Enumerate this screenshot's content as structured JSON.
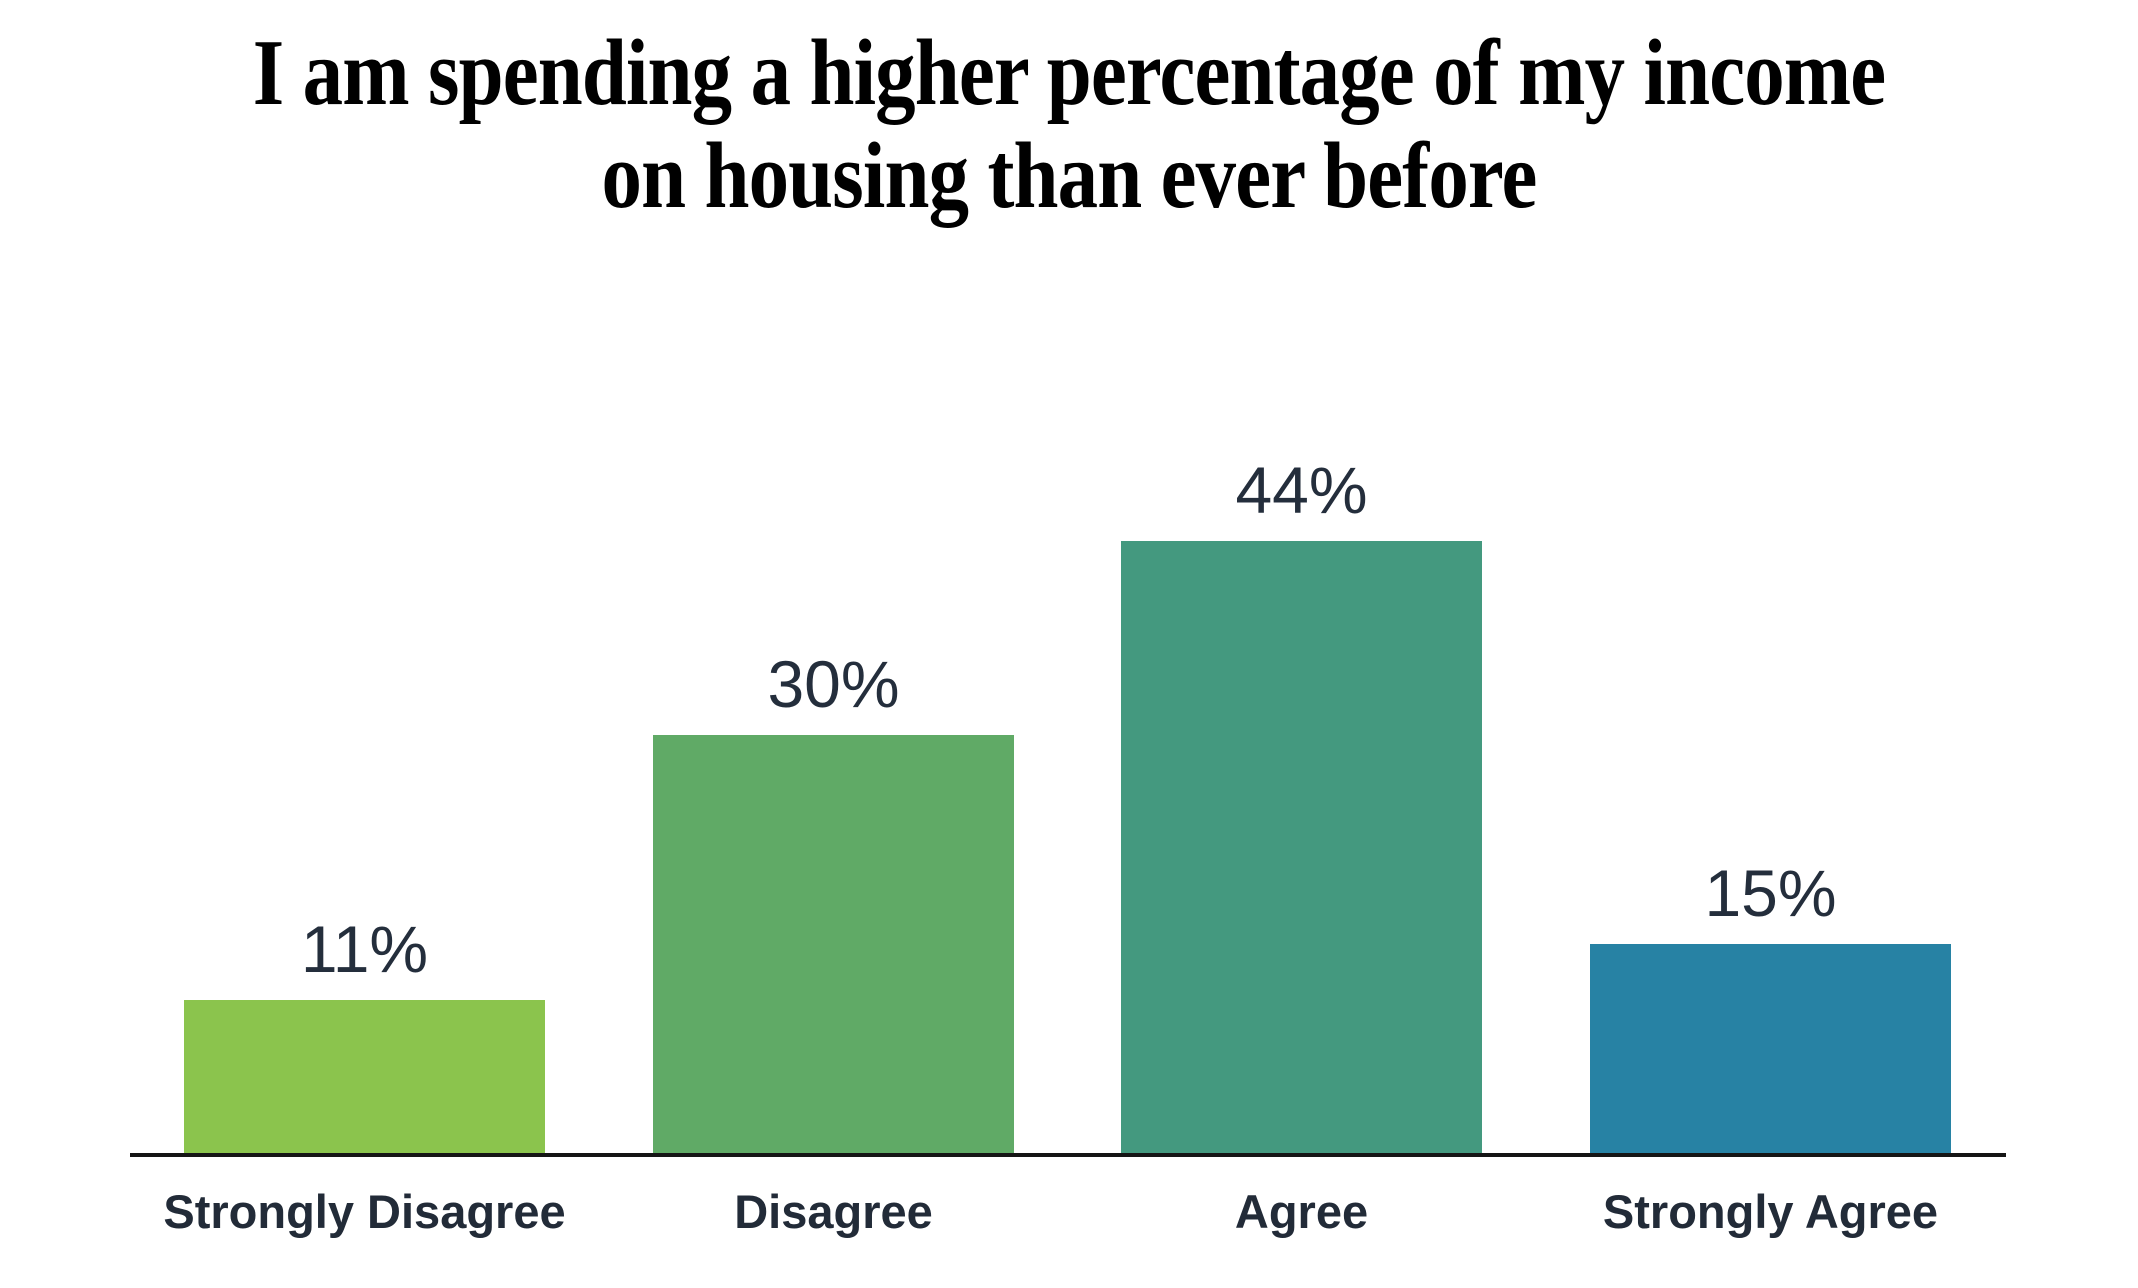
{
  "page": {
    "background": "#ffffff"
  },
  "chart_data": {
    "type": "bar",
    "title": "I am spending a higher percentage of my income on housing than ever before",
    "title_lines": [
      "I am spending a higher percentage of my income",
      "on housing than ever before"
    ],
    "categories": [
      "Strongly Disagree",
      "Disagree",
      "Agree",
      "Strongly Agree"
    ],
    "values": [
      11,
      30,
      44,
      15
    ],
    "value_labels": [
      "11%",
      "30%",
      "44%",
      "15%"
    ],
    "xlabel": "",
    "ylabel": "",
    "ylim": [
      0,
      50
    ],
    "grid": false,
    "legend": false,
    "colors": {
      "bars": [
        "#8BC44D",
        "#60AA66",
        "#44997F",
        "#2782A4"
      ],
      "title": "#000000",
      "value_label": "#242E3C",
      "category_label": "#222B38",
      "axis_line": "#151515"
    }
  }
}
